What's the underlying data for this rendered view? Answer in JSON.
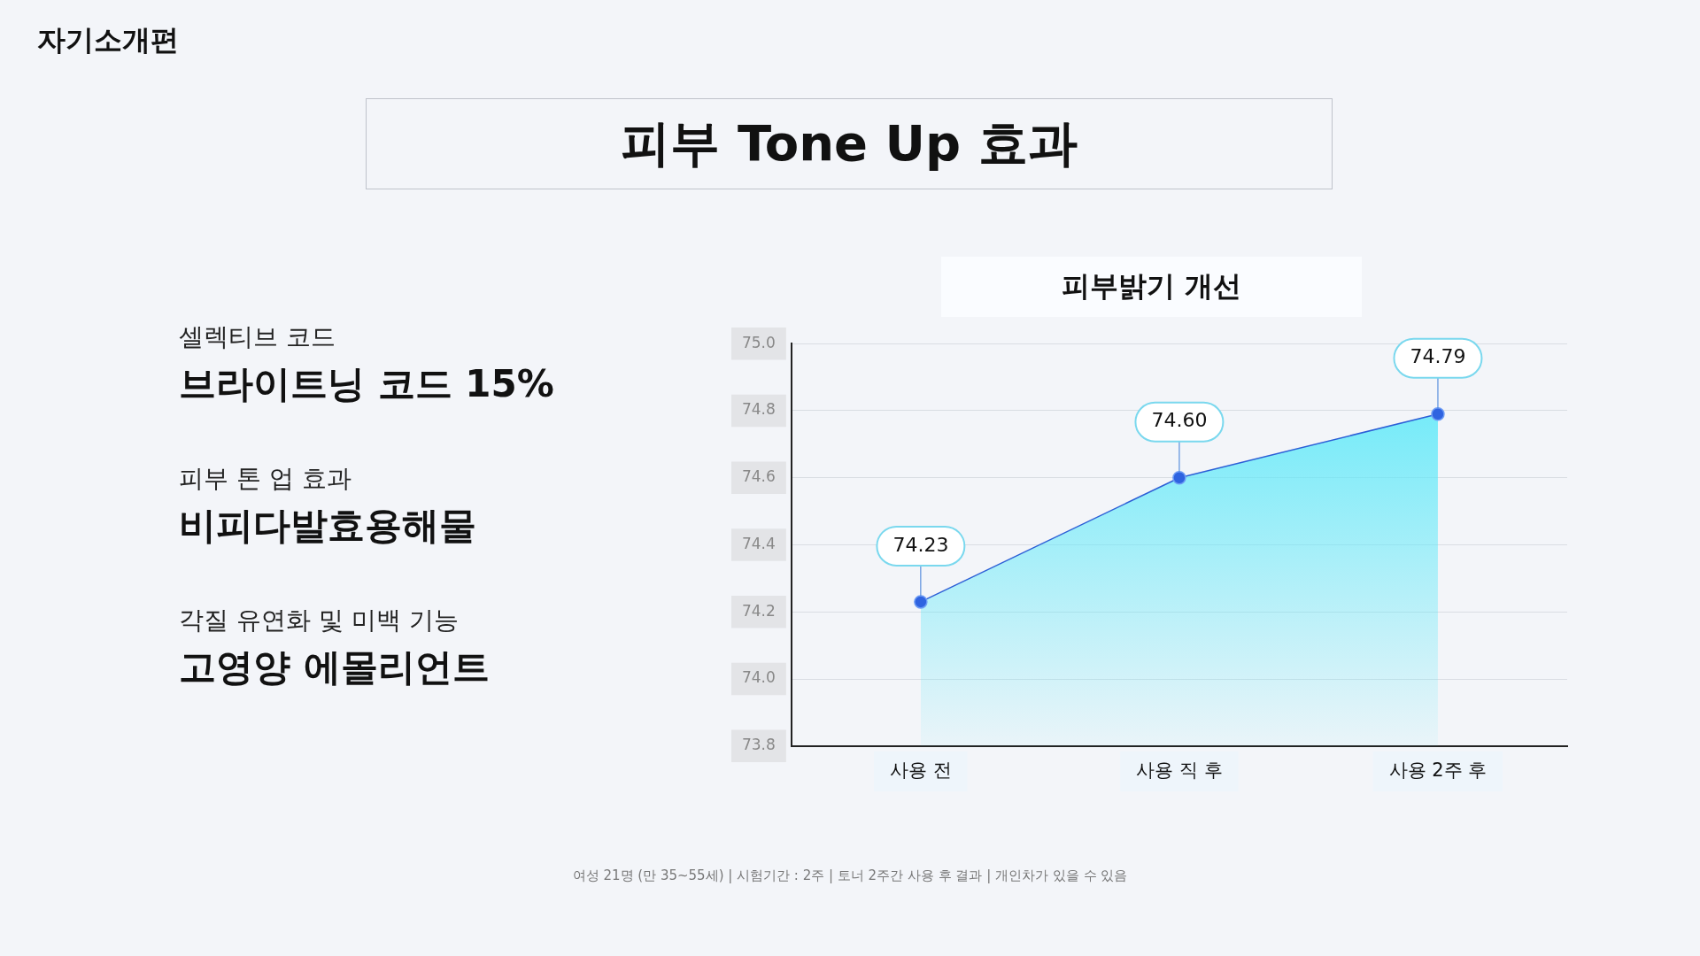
{
  "chart_data": {
    "type": "area",
    "title": "피부 Tone Up 효과",
    "subtitle": "피부밝기 개선",
    "categories": [
      "사용 전",
      "사용 직 후",
      "사용 2주 후"
    ],
    "series": [
      {
        "color": "#5ee9f9",
        "values": [
          74.23,
          74.6,
          74.79
        ],
        "value_labels": [
          "74.23",
          "74.60",
          "74.79"
        ]
      }
    ],
    "ylim": [
      73.8,
      75.0
    ],
    "yticks": [
      73.8,
      {
        "value": 74.0,
        "label": "74.0"
      },
      74.2,
      74.4,
      74.6,
      74.8,
      {
        "value": 75.0,
        "label": "75.0"
      }
    ],
    "grid": "y",
    "marker": "circle",
    "legend": false,
    "annotations": [
      "자기소개편",
      "셀렉티브 코드",
      "브라이트닝 코드 15%",
      "피부 톤 업 효과",
      "비피다발효용해물",
      "각질 유연화 및 미백 기능",
      "고영양 에몰리언트",
      "여성 21명 (만 35~55세)  |  시험기간 : 2주  |  토너 2주간 사용 후 결과  |  개인차가 있을 수 있음"
    ]
  }
}
